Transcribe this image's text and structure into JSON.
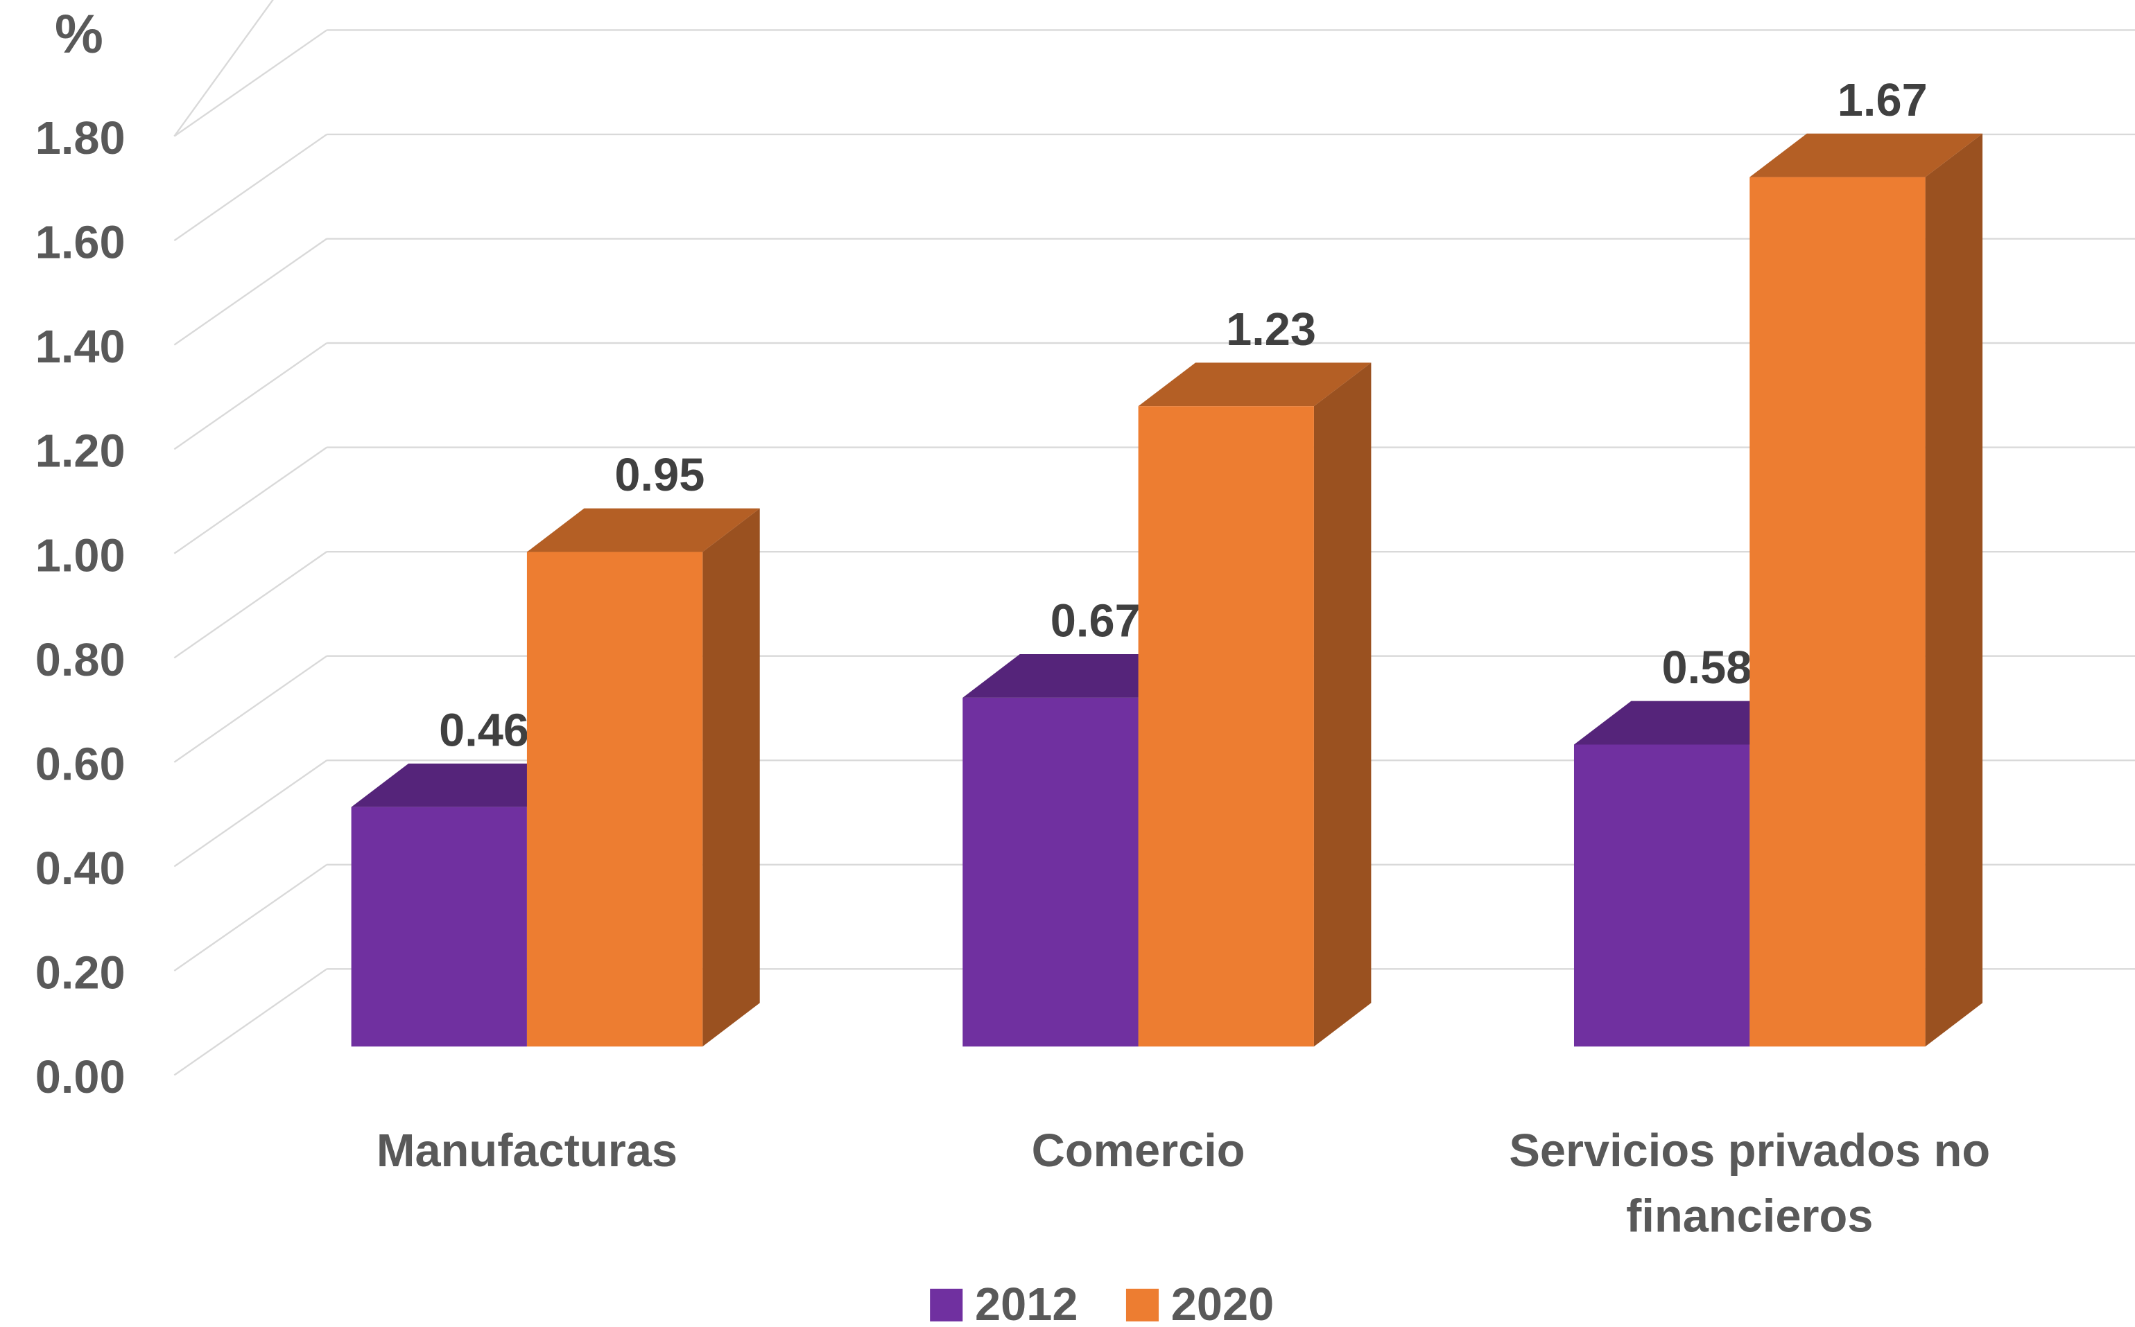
{
  "chart_data": {
    "type": "bar3d",
    "ylabel": "%",
    "categories": [
      "Manufacturas",
      "Comercio",
      "Servicios privados no financieros"
    ],
    "series": [
      {
        "name": "2012",
        "color": "#7030a0",
        "values": [
          0.46,
          0.67,
          0.58
        ]
      },
      {
        "name": "2020",
        "color": "#ed7d31",
        "values": [
          0.95,
          1.23,
          1.67
        ]
      }
    ],
    "ylim": [
      0,
      1.8
    ],
    "yticks": [
      {
        "value": 0,
        "label": "0.00"
      },
      {
        "value": 0.2,
        "label": "0.20"
      },
      {
        "value": 0.4,
        "label": "0.40"
      },
      {
        "value": 0.6,
        "label": "0.60"
      },
      {
        "value": 0.8,
        "label": "0.80"
      },
      {
        "value": 1,
        "label": "1.00"
      },
      {
        "value": 1.2,
        "label": "1.20"
      },
      {
        "value": 1.4,
        "label": "1.40"
      },
      {
        "value": 1.6,
        "label": "1.60"
      },
      {
        "value": 1.8,
        "label": "1.80"
      }
    ],
    "grid": true,
    "legend": "bottom"
  }
}
